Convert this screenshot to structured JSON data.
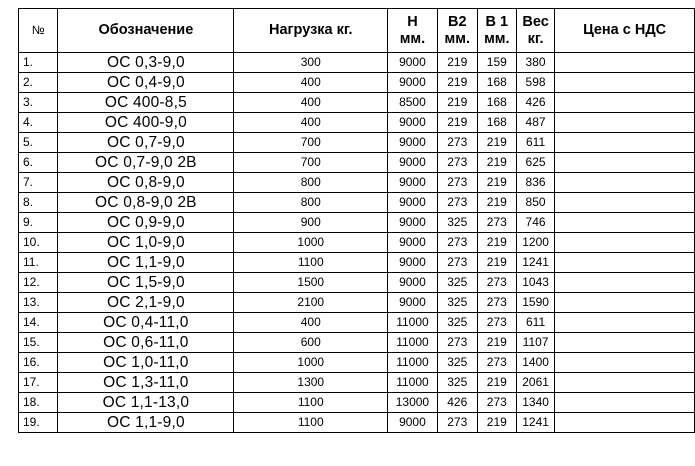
{
  "headers": {
    "num": "№",
    "name": "Обозначение",
    "load": "Нагрузка кг.",
    "h_line1": "Н",
    "h_line2": "мм.",
    "b2_line1": "В2",
    "b2_line2": "мм.",
    "b1_line1": "В 1",
    "b1_line2": "мм.",
    "weight_line1": "Вес",
    "weight_line2": "кг.",
    "price": "Цена с НДС"
  },
  "rows": [
    {
      "num": "1.",
      "name": "ОС 0,3-9,0",
      "load": "300",
      "h": "9000",
      "b2": "219",
      "b1": "159",
      "weight": "380",
      "price": ""
    },
    {
      "num": "2.",
      "name": "ОС 0,4-9,0",
      "load": "400",
      "h": "9000",
      "b2": "219",
      "b1": "168",
      "weight": "598",
      "price": ""
    },
    {
      "num": "3.",
      "name": "ОС 400-8,5",
      "load": "400",
      "h": "8500",
      "b2": "219",
      "b1": "168",
      "weight": "426",
      "price": ""
    },
    {
      "num": "4.",
      "name": "ОС 400-9,0",
      "load": "400",
      "h": "9000",
      "b2": "219",
      "b1": "168",
      "weight": "487",
      "price": ""
    },
    {
      "num": "5.",
      "name": "ОС 0,7-9,0",
      "load": "700",
      "h": "9000",
      "b2": "273",
      "b1": "219",
      "weight": "611",
      "price": ""
    },
    {
      "num": "6.",
      "name": "ОС 0,7-9,0 2В",
      "load": "700",
      "h": "9000",
      "b2": "273",
      "b1": "219",
      "weight": "625",
      "price": ""
    },
    {
      "num": "7.",
      "name": "ОС 0,8-9,0",
      "load": "800",
      "h": "9000",
      "b2": "273",
      "b1": "219",
      "weight": "836",
      "price": ""
    },
    {
      "num": "8.",
      "name": "ОС 0,8-9,0 2В",
      "load": "800",
      "h": "9000",
      "b2": "273",
      "b1": "219",
      "weight": "850",
      "price": ""
    },
    {
      "num": "9.",
      "name": "ОС 0,9-9,0",
      "load": "900",
      "h": "9000",
      "b2": "325",
      "b1": "273",
      "weight": "746",
      "price": ""
    },
    {
      "num": "10.",
      "name": "ОС 1,0-9,0",
      "load": "1000",
      "h": "9000",
      "b2": "273",
      "b1": "219",
      "weight": "1200",
      "price": ""
    },
    {
      "num": "11.",
      "name": "ОС 1,1-9,0",
      "load": "1100",
      "h": "9000",
      "b2": "273",
      "b1": "219",
      "weight": "1241",
      "price": ""
    },
    {
      "num": "12.",
      "name": "ОС 1,5-9,0",
      "load": "1500",
      "h": "9000",
      "b2": "325",
      "b1": "273",
      "weight": "1043",
      "price": ""
    },
    {
      "num": "13.",
      "name": "ОС 2,1-9,0",
      "load": "2100",
      "h": "9000",
      "b2": "325",
      "b1": "273",
      "weight": "1590",
      "price": ""
    },
    {
      "num": "14.",
      "name": "ОС 0,4-11,0",
      "load": "400",
      "h": "11000",
      "b2": "325",
      "b1": "273",
      "weight": "611",
      "price": ""
    },
    {
      "num": "15.",
      "name": "ОС 0,6-11,0",
      "load": "600",
      "h": "11000",
      "b2": "273",
      "b1": "219",
      "weight": "1107",
      "price": ""
    },
    {
      "num": "16.",
      "name": "ОС 1,0-11,0",
      "load": "1000",
      "h": "11000",
      "b2": "325",
      "b1": "273",
      "weight": "1400",
      "price": ""
    },
    {
      "num": "17.",
      "name": "ОС 1,3-11,0",
      "load": "1300",
      "h": "11000",
      "b2": "325",
      "b1": "219",
      "weight": "2061",
      "price": ""
    },
    {
      "num": "18.",
      "name": "ОС 1,1-13,0",
      "load": "1100",
      "h": "13000",
      "b2": "426",
      "b1": "273",
      "weight": "1340",
      "price": ""
    },
    {
      "num": "19.",
      "name": "ОС 1,1-9,0",
      "load": "1100",
      "h": "9000",
      "b2": "273",
      "b1": "219",
      "weight": "1241",
      "price": ""
    }
  ]
}
